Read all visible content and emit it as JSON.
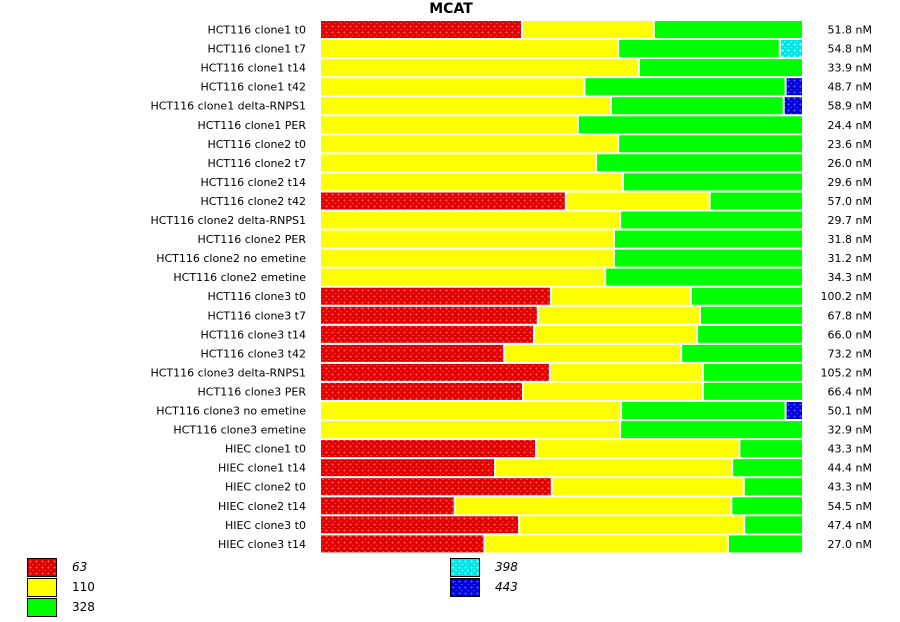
{
  "chart_data": {
    "type": "bar",
    "orientation": "horizontal",
    "stacked": "normalized",
    "title": "MCAT",
    "xlabel": "",
    "ylabel": "",
    "grid": false,
    "legend_position": "bottom",
    "unit_suffix": " nM",
    "categories": [
      "HCT116 clone1 t0",
      "HCT116 clone1 t7",
      "HCT116 clone1 t14",
      "HCT116 clone1 t42",
      "HCT116 clone1 delta-RNPS1",
      "HCT116 clone1 PER",
      "HCT116 clone2 t0",
      "HCT116 clone2 t7",
      "HCT116 clone2 t14",
      "HCT116 clone2 t42",
      "HCT116 clone2 delta-RNPS1",
      "HCT116 clone2 PER",
      "HCT116 clone2 no emetine",
      "HCT116 clone2 emetine",
      "HCT116 clone3 t0",
      "HCT116 clone3 t7",
      "HCT116 clone3 t14",
      "HCT116 clone3 t42",
      "HCT116 clone3 delta-RNPS1",
      "HCT116 clone3 PER",
      "HCT116 clone3 no emetine",
      "HCT116 clone3 emetine",
      "HIEC clone1 t0",
      "HIEC clone1 t14",
      "HIEC clone2 t0",
      "HIEC clone2 t14",
      "HIEC clone3 t0",
      "HIEC clone3 t14"
    ],
    "totals": [
      "51.8",
      "54.8",
      "33.9",
      "48.7",
      "58.9",
      "24.4",
      "23.6",
      "26.0",
      "29.6",
      "57.0",
      "29.7",
      "31.8",
      "31.2",
      "34.3",
      "100.2",
      "67.8",
      "66.0",
      "73.2",
      "105.2",
      "66.4",
      "50.1",
      "32.9",
      "43.3",
      "44.4",
      "43.3",
      "54.5",
      "47.4",
      "27.0"
    ],
    "series": [
      {
        "name": "63",
        "color": "#ff0000",
        "pattern": true,
        "italic": true,
        "values": [
          42.0,
          0,
          0,
          0,
          0,
          0,
          0,
          0,
          0,
          51.1,
          0,
          0,
          0,
          0,
          48.0,
          45.3,
          44.5,
          38.3,
          47.8,
          42.2,
          0,
          0,
          44.9,
          36.4,
          48.2,
          28.0,
          41.4,
          34.2
        ]
      },
      {
        "name": "110",
        "color": "#ffff00",
        "pattern": false,
        "italic": false,
        "values": [
          27.4,
          62.0,
          66.3,
          55.0,
          60.5,
          53.6,
          62.0,
          57.4,
          63.0,
          29.9,
          62.4,
          61.1,
          61.1,
          59.3,
          29.1,
          33.7,
          33.9,
          36.8,
          31.8,
          37.4,
          62.6,
          62.4,
          42.3,
          49.3,
          39.9,
          57.5,
          46.8,
          50.6
        ]
      },
      {
        "name": "328",
        "color": "#00ff00",
        "pattern": false,
        "italic": false,
        "values": [
          30.6,
          33.6,
          33.7,
          41.8,
          35.9,
          46.4,
          38.0,
          42.6,
          37.0,
          19.0,
          37.6,
          38.9,
          38.9,
          40.7,
          22.9,
          21.0,
          21.6,
          24.9,
          20.4,
          20.4,
          34.2,
          37.6,
          12.8,
          14.3,
          11.9,
          14.5,
          11.8,
          15.2
        ]
      },
      {
        "name": "398",
        "color": "#00ffff",
        "pattern": true,
        "italic": true,
        "values": [
          0,
          4.4,
          0,
          0,
          0,
          0,
          0,
          0,
          0,
          0,
          0,
          0,
          0,
          0,
          0,
          0,
          0,
          0,
          0,
          0,
          0,
          0,
          0,
          0,
          0,
          0,
          0,
          0
        ]
      },
      {
        "name": "443",
        "color": "#0000ff",
        "pattern": true,
        "italic": true,
        "values": [
          0,
          0,
          0,
          3.2,
          3.6,
          0,
          0,
          0,
          0,
          0,
          0,
          0,
          0,
          0,
          0,
          0,
          0,
          0,
          0,
          0,
          3.2,
          0,
          0,
          0,
          0,
          0,
          0,
          0
        ]
      }
    ],
    "xlim": [
      0,
      100
    ]
  }
}
